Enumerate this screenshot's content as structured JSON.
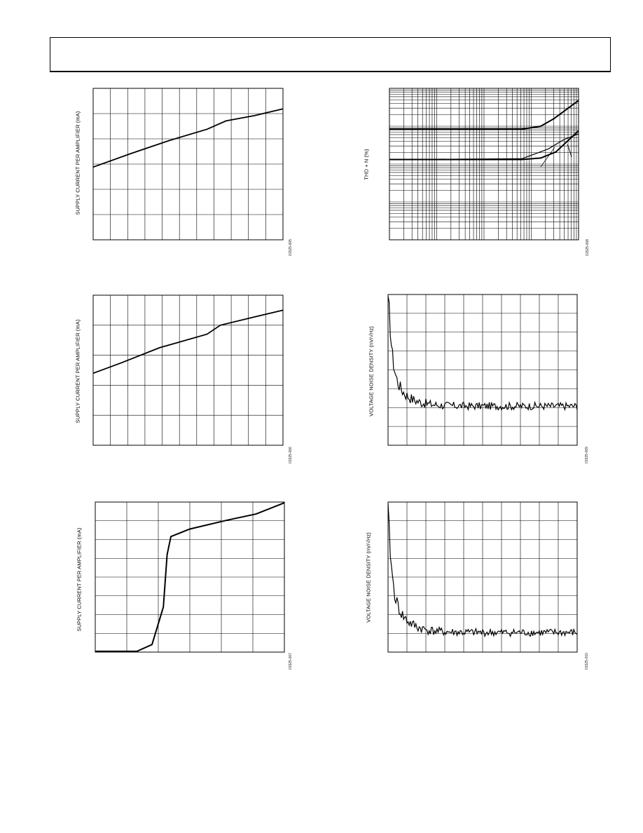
{
  "charts": [
    {
      "id": "c1",
      "ylabel": "SUPPLY CURRENT PER AMPLIFIER (mA)",
      "figid": "01525-005"
    },
    {
      "id": "c2",
      "ylabel": "THD + N (%)",
      "figid": "01525-008"
    },
    {
      "id": "c3",
      "ylabel": "SUPPLY CURRENT PER AMPLIFIER (mA)",
      "figid": "01525-006"
    },
    {
      "id": "c4",
      "ylabel": "VOLTAGE NOISE DENSITY (nV/√Hz)",
      "figid": "01525-009"
    },
    {
      "id": "c5",
      "ylabel": "SUPPLY CURRENT PER AMPLIFIER (mA)",
      "figid": "01525-007"
    },
    {
      "id": "c6",
      "ylabel": "VOLTAGE NOISE DENSITY (nV/√Hz)",
      "figid": "01525-010"
    }
  ],
  "chart_data": [
    {
      "type": "line",
      "series": [
        {
          "values": [
            [
              0,
              0.48
            ],
            [
              0.2,
              0.57
            ],
            [
              0.4,
              0.655
            ],
            [
              0.6,
              0.73
            ],
            [
              0.7,
              0.785
            ],
            [
              0.85,
              0.82
            ],
            [
              1,
              0.865
            ]
          ]
        }
      ]
    },
    {
      "type": "line",
      "yscale": "log",
      "xscale": "log",
      "series": [
        {
          "values": [
            [
              0,
              0.73
            ],
            [
              0.7,
              0.73
            ],
            [
              0.8,
              0.75
            ],
            [
              0.87,
              0.8
            ],
            [
              1,
              0.92
            ]
          ]
        },
        {
          "values": [
            [
              0,
              0.53
            ],
            [
              0.7,
              0.53
            ],
            [
              0.8,
              0.54
            ],
            [
              0.88,
              0.58
            ],
            [
              1,
              0.72
            ]
          ]
        },
        {
          "values": [
            [
              0,
              0.53
            ],
            [
              0.7,
              0.535
            ],
            [
              0.84,
              0.6
            ],
            [
              0.92,
              0.66
            ],
            [
              1,
              0.7
            ]
          ]
        }
      ]
    },
    {
      "type": "line",
      "series": [
        {
          "values": [
            [
              0,
              0.48
            ],
            [
              0.15,
              0.55
            ],
            [
              0.35,
              0.65
            ],
            [
              0.6,
              0.74
            ],
            [
              0.67,
              0.8
            ],
            [
              0.85,
              0.855
            ],
            [
              1,
              0.9
            ]
          ]
        }
      ]
    },
    {
      "type": "line",
      "series": [
        {
          "values": []
        }
      ]
    },
    {
      "type": "line",
      "series": [
        {
          "values": [
            [
              0,
              0.005
            ],
            [
              0.22,
              0.005
            ],
            [
              0.3,
              0.05
            ],
            [
              0.36,
              0.3
            ],
            [
              0.38,
              0.65
            ],
            [
              0.4,
              0.77
            ],
            [
              0.5,
              0.82
            ],
            [
              0.7,
              0.88
            ],
            [
              0.85,
              0.92
            ],
            [
              1,
              0.995
            ]
          ]
        }
      ]
    },
    {
      "type": "line",
      "series": [
        {
          "values": []
        }
      ]
    }
  ]
}
